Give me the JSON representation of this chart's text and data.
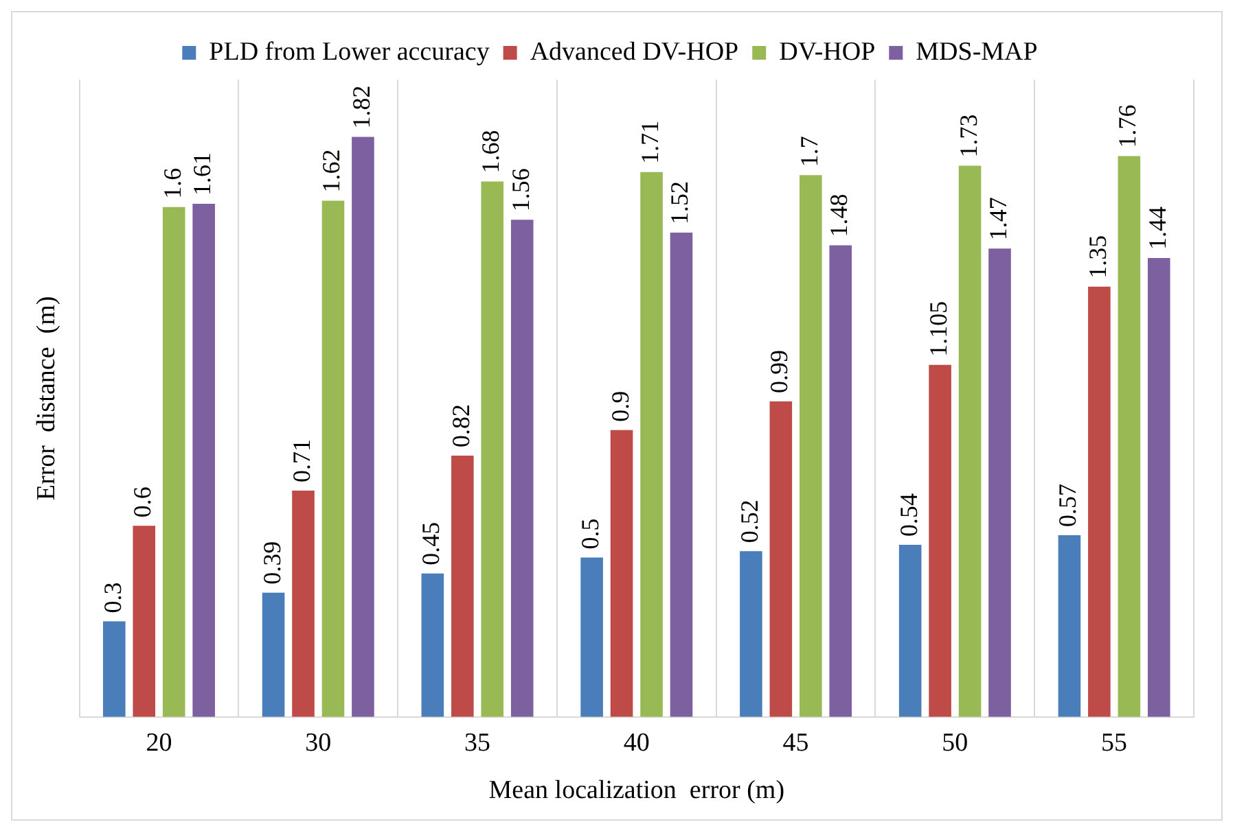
{
  "chart_data": {
    "type": "bar",
    "xlabel": "Mean localization  error (m)",
    "ylabel": "Error  distance  (m)",
    "categories": [
      "20",
      "30",
      "35",
      "40",
      "45",
      "50",
      "55"
    ],
    "series": [
      {
        "name": "PLD from Lower accuracy",
        "color": "#4a7ebb",
        "values": [
          0.3,
          0.39,
          0.45,
          0.5,
          0.52,
          0.54,
          0.57
        ]
      },
      {
        "name": "Advanced DV-HOP",
        "color": "#be4b48",
        "values": [
          0.6,
          0.71,
          0.82,
          0.9,
          0.99,
          1.105,
          1.35
        ]
      },
      {
        "name": "DV-HOP",
        "color": "#98b954",
        "values": [
          1.6,
          1.62,
          1.68,
          1.71,
          1.7,
          1.73,
          1.76
        ]
      },
      {
        "name": "MDS-MAP",
        "color": "#7d60a0",
        "values": [
          1.61,
          1.82,
          1.56,
          1.52,
          1.48,
          1.47,
          1.44
        ]
      }
    ],
    "data_labels": true,
    "grid": "x",
    "legend": "top"
  }
}
